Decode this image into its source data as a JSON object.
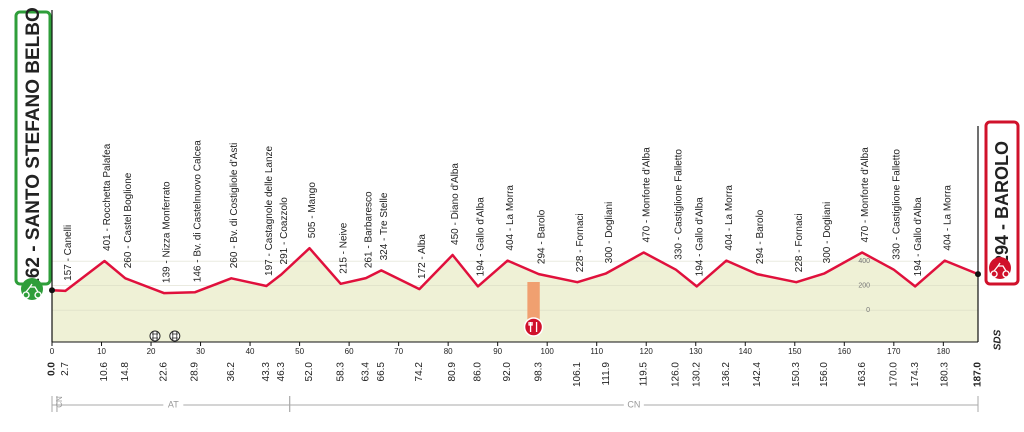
{
  "chart_data": {
    "type": "elevation-profile",
    "start": {
      "km": {
        "value": 0,
        "label": "0.0"
      },
      "altitude": 162,
      "label": "162 - SANTO STEFANO BELBO"
    },
    "finish": {
      "km": {
        "value": 187,
        "label": "187.0"
      },
      "altitude": 294,
      "label": "294 - BAROLO"
    },
    "waypoints": [
      {
        "km": 2.7,
        "altitude": 157,
        "label": "157 - Canelli"
      },
      {
        "km": 10.6,
        "altitude": 401,
        "label": "401 - Rocchetta Palafea"
      },
      {
        "km": 14.8,
        "altitude": 260,
        "label": "260 - Castel Boglione"
      },
      {
        "km": 22.6,
        "altitude": 139,
        "label": "139 - Nizza Monferrato"
      },
      {
        "km": 28.9,
        "altitude": 146,
        "label": "146 - Bv. di Castelnuovo Calcea"
      },
      {
        "km": 36.2,
        "altitude": 260,
        "label": "260 - Bv. di Costigliole d'Asti"
      },
      {
        "km": 43.3,
        "altitude": 197,
        "label": "197 - Castagnole delle Lanze"
      },
      {
        "km": 46.3,
        "altitude": 291,
        "label": "291 - Coazzolo"
      },
      {
        "km": {
          "value": 52,
          "label": "52.0"
        },
        "altitude": 505,
        "label": "505 - Mango"
      },
      {
        "km": 58.3,
        "altitude": 215,
        "label": "215 - Neive"
      },
      {
        "km": 63.4,
        "altitude": 261,
        "label": "261 - Barbaresco"
      },
      {
        "km": 66.5,
        "altitude": 324,
        "label": "324 - Tre Stelle"
      },
      {
        "km": 74.2,
        "altitude": 172,
        "label": "172 - Alba"
      },
      {
        "km": 80.9,
        "altitude": 450,
        "label": "450 - Diano d'Alba"
      },
      {
        "km": {
          "value": 86,
          "label": "86.0"
        },
        "altitude": 194,
        "label": "194 - Gallo d'Alba"
      },
      {
        "km": {
          "value": 92,
          "label": "92.0"
        },
        "altitude": 404,
        "label": "404 - La Morra"
      },
      {
        "km": 98.3,
        "altitude": 294,
        "label": "294 - Barolo"
      },
      {
        "km": 106.1,
        "altitude": 228,
        "label": "228 - Fornaci"
      },
      {
        "km": 111.9,
        "altitude": 300,
        "label": "300 - Dogliani"
      },
      {
        "km": 119.5,
        "altitude": 470,
        "label": "470 - Monforte d'Alba"
      },
      {
        "km": {
          "value": 126,
          "label": "126.0"
        },
        "altitude": 330,
        "label": "330 - Castiglione Falletto"
      },
      {
        "km": 130.2,
        "altitude": 194,
        "label": "194 - Gallo d'Alba"
      },
      {
        "km": 136.2,
        "altitude": 404,
        "label": "404 - La Morra"
      },
      {
        "km": 142.4,
        "altitude": 294,
        "label": "294 - Barolo"
      },
      {
        "km": 150.3,
        "altitude": 228,
        "label": "228 - Fornaci"
      },
      {
        "km": {
          "value": 156,
          "label": "156.0"
        },
        "altitude": 300,
        "label": "300 - Dogliani"
      },
      {
        "km": 163.6,
        "altitude": 470,
        "label": "470 - Monforte d'Alba"
      },
      {
        "km": {
          "value": 170,
          "label": "170.0"
        },
        "altitude": 330,
        "label": "330 - Castiglione Falletto"
      },
      {
        "km": 174.3,
        "altitude": 194,
        "label": "194 - Gallo d'Alba"
      },
      {
        "km": 180.3,
        "altitude": 404,
        "label": "404 - La Morra"
      }
    ],
    "xlim": [
      0,
      187
    ],
    "xticks": [
      0,
      10,
      20,
      30,
      40,
      50,
      60,
      70,
      80,
      90,
      100,
      110,
      120,
      130,
      140,
      150,
      160,
      170,
      180
    ],
    "ylim": [
      -260,
      2400
    ],
    "yticks": [
      0,
      200,
      400
    ],
    "line_color": "#e0103c",
    "fill_color": "#eff1d6",
    "feed_zone": [
      96,
      98.5
    ],
    "level_crossings_km": [
      20.8,
      24.8
    ],
    "regions": [
      {
        "name": "CN",
        "from": 0,
        "to": 1
      },
      {
        "name": "AT",
        "from": 1,
        "to": 48
      },
      {
        "name": "CN",
        "from": 48,
        "to": 187
      }
    ],
    "logo": "SDS"
  }
}
